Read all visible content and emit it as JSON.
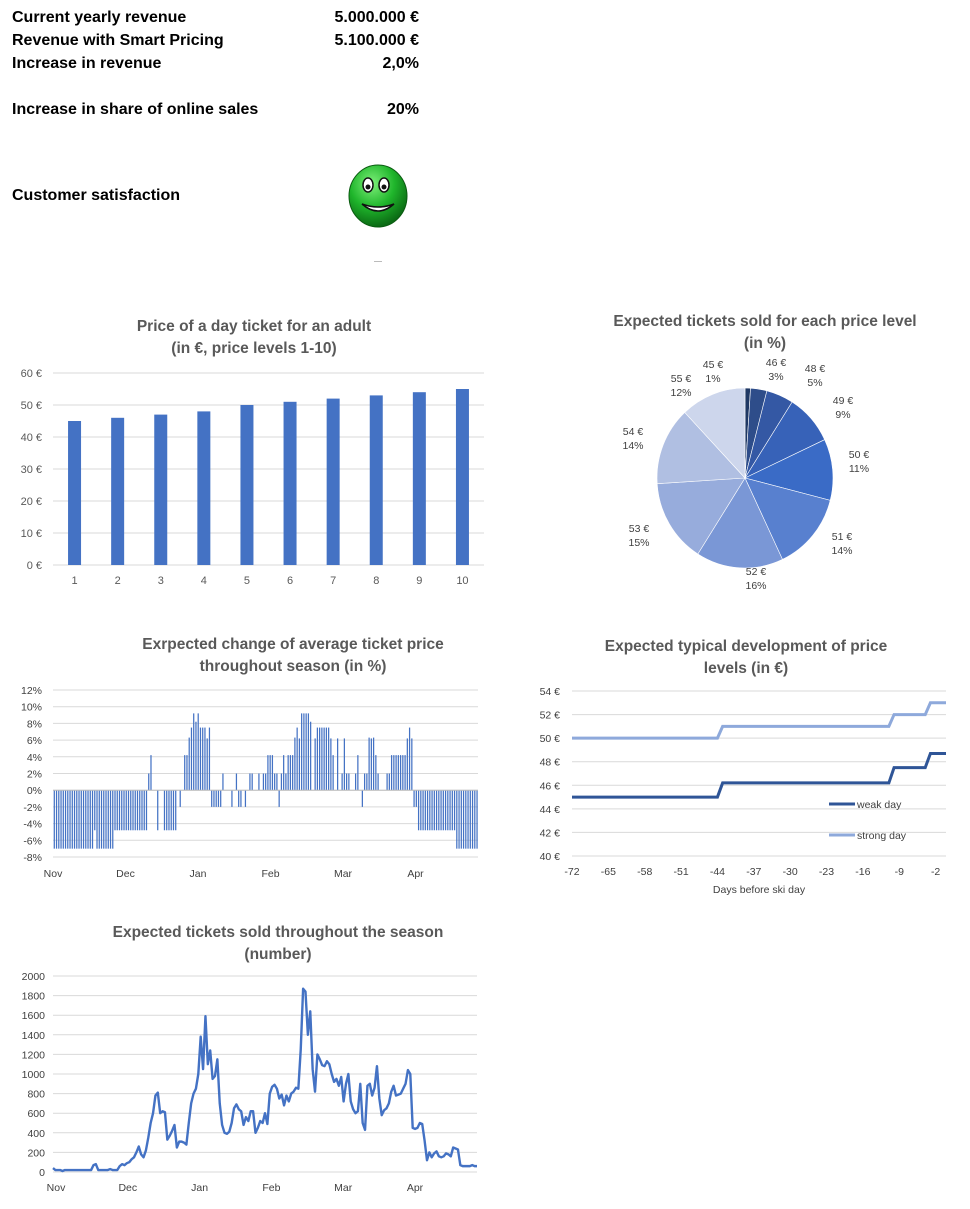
{
  "kpis": {
    "current_revenue_label": "Current yearly revenue",
    "current_revenue_value": "5.000.000 €",
    "smart_revenue_label": "Revenue with Smart Pricing",
    "smart_revenue_value": "5.100.000 €",
    "increase_label": "Increase in revenue",
    "increase_value": "2,0%",
    "online_label": "Increase in share of online sales",
    "online_value": "20%",
    "satisfaction_label": "Customer satisfaction",
    "satisfaction_icon": "happy-face-icon"
  },
  "chart_data": [
    {
      "id": "price-bar",
      "type": "bar",
      "title": [
        "Price of a day ticket for an adult",
        "(in €, price levels 1-10)"
      ],
      "categories": [
        "1",
        "2",
        "3",
        "4",
        "5",
        "6",
        "7",
        "8",
        "9",
        "10"
      ],
      "values": [
        45,
        46,
        47,
        48,
        50,
        51,
        52,
        53,
        54,
        55
      ],
      "yticks": [
        "0 €",
        "10 €",
        "20 €",
        "30 €",
        "40 €",
        "50 €",
        "60 €"
      ],
      "ylim": [
        0,
        60
      ],
      "color": "#4472c4"
    },
    {
      "id": "price-pie",
      "type": "pie",
      "title": [
        "Expected tickets sold for each price level",
        "(in %)"
      ],
      "slices": [
        {
          "label": "45 €",
          "value": 1,
          "pct": "1%",
          "color": "#1f3864"
        },
        {
          "label": "46 €",
          "value": 3,
          "pct": "3%",
          "color": "#2e4d8a"
        },
        {
          "label": "48 €",
          "value": 5,
          "pct": "5%",
          "color": "#3458a4"
        },
        {
          "label": "49 €",
          "value": 9,
          "pct": "9%",
          "color": "#3762b8"
        },
        {
          "label": "50 €",
          "value": 11,
          "pct": "11%",
          "color": "#3a6bc6"
        },
        {
          "label": "51 €",
          "value": 14,
          "pct": "14%",
          "color": "#5880cf"
        },
        {
          "label": "52 €",
          "value": 16,
          "pct": "16%",
          "color": "#7a97d6"
        },
        {
          "label": "53 €",
          "value": 15,
          "pct": "15%",
          "color": "#97acdc"
        },
        {
          "label": "54 €",
          "value": 14,
          "pct": "14%",
          "color": "#b0bfe2"
        },
        {
          "label": "55 €",
          "value": 12,
          "pct": "12%",
          "color": "#cdd6ec"
        }
      ]
    },
    {
      "id": "avg-price-change",
      "type": "bar",
      "title": [
        "Exrpected change of average ticket price",
        "throughout season  (in %)"
      ],
      "months": [
        "Nov",
        "Dec",
        "Jan",
        "Feb",
        "Mar",
        "Apr"
      ],
      "yticks": [
        "-8%",
        "-6%",
        "-4%",
        "-2%",
        "0%",
        "2%",
        "4%",
        "6%",
        "8%",
        "10%",
        "12%"
      ],
      "ylim": [
        -8,
        12
      ],
      "values": [
        -7,
        -7,
        -7,
        -7,
        -7,
        -7,
        -7,
        -7,
        -7,
        -7,
        -7,
        -7,
        -7,
        -7,
        -7,
        -7,
        -7,
        -7,
        -4.8,
        -7,
        -7,
        -7,
        -7,
        -7,
        -7,
        -7,
        -7,
        -4.8,
        -4.8,
        -4.8,
        -4.8,
        -4.8,
        -4.8,
        -4.8,
        -4.8,
        -4.8,
        -4.8,
        -4.8,
        -4.8,
        -4.8,
        -4.8,
        -4.8,
        2,
        4.2,
        0,
        0,
        -4.8,
        0,
        0,
        -4.8,
        -4.8,
        -4.8,
        -4.8,
        -4.8,
        -4.8,
        0,
        -2,
        0,
        4.2,
        4.2,
        6.3,
        7.5,
        9.2,
        8.2,
        9.2,
        7.5,
        7.5,
        7.5,
        6.2,
        7.5,
        -2,
        -2,
        -2,
        -2,
        -2,
        2,
        0,
        0,
        0,
        -2,
        0,
        2,
        -2,
        -2,
        0,
        -2,
        0,
        2,
        2,
        0,
        0,
        2,
        0,
        2,
        2,
        4.2,
        4.2,
        4.2,
        2,
        2,
        -2,
        2,
        4.2,
        2,
        4.2,
        4.2,
        4.2,
        6.3,
        7.5,
        6.2,
        9.2,
        9.2,
        9.2,
        9.2,
        8.2,
        0,
        6.2,
        7.5,
        7.5,
        7.5,
        7.5,
        7.5,
        7.5,
        6.2,
        4.2,
        0,
        6.2,
        0,
        2,
        6.2,
        2,
        2,
        0,
        0,
        2,
        4.2,
        0,
        -2,
        2,
        2,
        6.3,
        6.2,
        6.3,
        4.2,
        2,
        0,
        0,
        0,
        2,
        2,
        4.2,
        4.2,
        4.2,
        4.2,
        4.2,
        4.2,
        4.2,
        6.2,
        7.5,
        6.2,
        -2,
        -2,
        -4.8,
        -4.8,
        -4.8,
        -4.8,
        -4.8,
        -4.8,
        -4.8,
        -4.8,
        -4.8,
        -4.8,
        -4.8,
        -4.8,
        -4.8,
        -4.8,
        -4.8,
        -4.8,
        -4.8,
        -7,
        -7,
        -7,
        -7,
        -7,
        -7,
        -7,
        -7,
        -7,
        -7
      ],
      "color": "#4472c4"
    },
    {
      "id": "price-development",
      "type": "line",
      "title": [
        "Expected typical development of price",
        "levels (in €)"
      ],
      "xlabel": "Days before ski day",
      "xticks": [
        "-72",
        "-65",
        "-58",
        "-51",
        "-44",
        "-37",
        "-30",
        "-23",
        "-16",
        "-9",
        "-2"
      ],
      "yticks": [
        "40 €",
        "42 €",
        "44 €",
        "46 €",
        "48 €",
        "50 €",
        "52 €",
        "54 €"
      ],
      "ylim": [
        40,
        54
      ],
      "x": [
        -72,
        -44,
        -43,
        -11,
        -10,
        -4,
        -3,
        0
      ],
      "series": [
        {
          "name": "weak day",
          "values": [
            45,
            45,
            46.2,
            46.2,
            47.5,
            47.5,
            48.7,
            48.7
          ],
          "color": "#2f5597"
        },
        {
          "name": "strong day",
          "values": [
            50,
            50,
            51,
            51,
            52,
            52,
            53,
            53
          ],
          "color": "#8ea9db"
        }
      ],
      "legend": "right"
    },
    {
      "id": "tickets-sold",
      "type": "line",
      "title": [
        "Expected tickets sold throughout the season",
        "(number)"
      ],
      "months": [
        "Nov",
        "Dec",
        "Jan",
        "Feb",
        "Mar",
        "Apr"
      ],
      "yticks": [
        "0",
        "200",
        "400",
        "600",
        "800",
        "1000",
        "1200",
        "1400",
        "1600",
        "1800",
        "2000"
      ],
      "ylim": [
        0,
        2000
      ],
      "values": [
        40,
        20,
        20,
        20,
        10,
        20,
        20,
        20,
        20,
        20,
        20,
        20,
        20,
        20,
        20,
        20,
        20,
        70,
        80,
        20,
        20,
        20,
        20,
        20,
        30,
        20,
        20,
        20,
        60,
        80,
        70,
        90,
        100,
        130,
        150,
        200,
        260,
        180,
        150,
        220,
        350,
        500,
        600,
        780,
        810,
        600,
        620,
        610,
        330,
        370,
        420,
        480,
        250,
        310,
        310,
        300,
        280,
        500,
        700,
        800,
        850,
        1000,
        1380,
        1050,
        1590,
        1100,
        1240,
        950,
        980,
        1150,
        700,
        480,
        400,
        390,
        410,
        500,
        650,
        690,
        640,
        620,
        480,
        560,
        520,
        620,
        620,
        400,
        450,
        520,
        500,
        600,
        490,
        800,
        870,
        890,
        850,
        750,
        790,
        680,
        780,
        720,
        800,
        820,
        860,
        850,
        1250,
        1870,
        1840,
        1400,
        1640,
        1050,
        820,
        1200,
        1150,
        1090,
        1080,
        1130,
        1100,
        1000,
        920,
        950,
        880,
        970,
        720,
        900,
        1000,
        720,
        640,
        600,
        620,
        900,
        500,
        430,
        880,
        900,
        780,
        860,
        1080,
        750,
        580,
        630,
        650,
        700,
        820,
        880,
        780,
        790,
        800,
        850,
        900,
        1040,
        1000,
        450,
        440,
        450,
        500,
        490,
        320,
        120,
        200,
        150,
        190,
        210,
        160,
        150,
        160,
        190,
        180,
        160,
        250,
        240,
        230,
        70,
        60,
        60,
        60,
        60,
        70,
        60,
        60
      ],
      "color": "#4472c4"
    }
  ]
}
